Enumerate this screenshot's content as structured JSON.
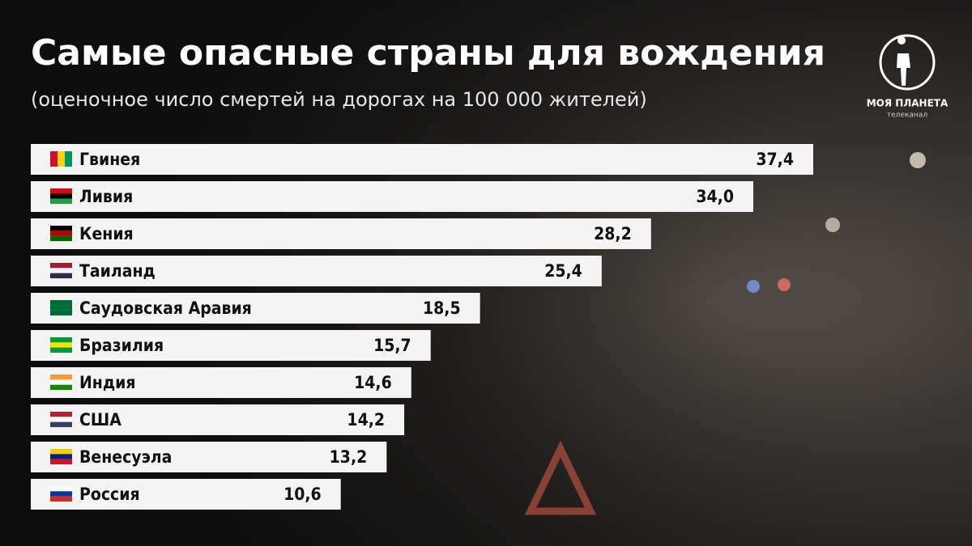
{
  "chart_data": {
    "type": "hbar",
    "title": "Самые опасные страны для вождения",
    "subtitle": "(оценочное число смертей на дорогах на 100 000 жителей)",
    "categories": [
      "Гвинея",
      "Ливия",
      "Кения",
      "Таиланд",
      "Саудовская Аравия",
      "Бразилия",
      "Индия",
      "США",
      "Венесуэла",
      "Россия"
    ],
    "values": [
      37.4,
      34.0,
      28.2,
      25.4,
      18.5,
      15.7,
      14.6,
      14.2,
      13.2,
      10.6
    ],
    "value_labels": [
      "37,4",
      "34,0",
      "28,2",
      "25,4",
      "18,5",
      "15,7",
      "14,6",
      "14,2",
      "13,2",
      "10,6"
    ],
    "color": "#f4f4f4"
  },
  "logo": {
    "name": "МОЯ ПЛАНЕТА",
    "subtitle": "телеканал"
  }
}
